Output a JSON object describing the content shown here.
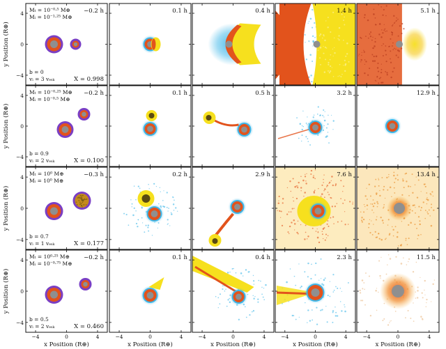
{
  "figure": {
    "ylabel": "y Position (R⊕)",
    "xlabel": "x Position (R⊕)",
    "tick_labels": [
      "4",
      "0",
      "−4"
    ],
    "x_tick_labels": [
      "−4",
      "0",
      "4"
    ],
    "colors": {
      "purple": "#7a3fc4",
      "orange": "#e2531c",
      "cyan": "#3cb6e8",
      "yellow": "#f6e01e",
      "gray": "#8f8f8f",
      "olive": "#5a4a12"
    },
    "rows": [
      {
        "mass_t": "Mₜ = 10⁻⁰·⁵ M⊕",
        "mass_i": "Mᵢ = 10⁻¹·²⁵ M⊕",
        "b": "b = 0",
        "v": "vᵢ = 3 vₑₛₖ",
        "X": "X = 0.998",
        "times": [
          "−0.2 h",
          "0.1 h",
          "0.4 h",
          "1.4 h",
          "5.1 h"
        ]
      },
      {
        "mass_t": "Mₜ = 10⁻⁰·²⁵ M⊕",
        "mass_i": "Mᵢ = 10⁻⁰·⁵ M⊕",
        "b": "b = 0.9",
        "v": "vᵢ = 2 vₑₛₖ",
        "X": "X = 0.100",
        "times": [
          "−0.2 h",
          "0.1 h",
          "0.5 h",
          "3.2 h",
          "12.9 h"
        ]
      },
      {
        "mass_t": "Mₜ = 10⁰ M⊕",
        "mass_i": "Mᵢ = 10⁰ M⊕",
        "b": "b = 0.7",
        "v": "vᵢ = 1 vₑₛₖ",
        "X": "X = 0.177",
        "times": [
          "−0.3 h",
          "0.2 h",
          "2.9 h",
          "7.6 h",
          "13.4 h"
        ]
      },
      {
        "mass_t": "Mₜ = 10⁰·²⁵ M⊕",
        "mass_i": "Mᵢ = 10⁻⁰·⁷⁵ M⊕",
        "b": "b = 0.5",
        "v": "vᵢ = 2 vₑₛₖ",
        "X": "X = 0.460",
        "times": [
          "−0.2 h",
          "0.1 h",
          "0.4 h",
          "2.3 h",
          "11.5 h"
        ]
      }
    ]
  }
}
